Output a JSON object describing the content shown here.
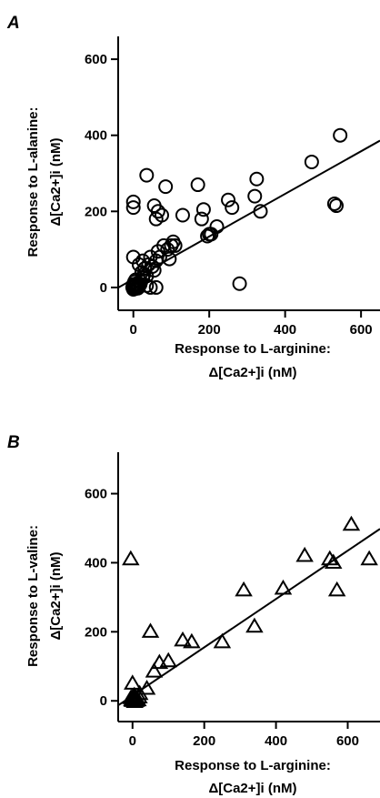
{
  "chart_data": [
    {
      "type": "scatter",
      "panel": "A",
      "xlabel": [
        "Response to L-arginine:",
        "Δ[Ca2+]i (nM)"
      ],
      "ylabel": [
        "Response to L-alanine:",
        "Δ[Ca2+]i (nM)"
      ],
      "xlim": [
        -40,
        650
      ],
      "ylim": [
        -60,
        660
      ],
      "xticks": [
        0,
        200,
        400,
        600
      ],
      "yticks": [
        0,
        200,
        400,
        600
      ],
      "marker": "circle",
      "grid": false,
      "points": [
        [
          0,
          0
        ],
        [
          2,
          5
        ],
        [
          5,
          -3
        ],
        [
          8,
          10
        ],
        [
          3,
          15
        ],
        [
          10,
          2
        ],
        [
          0,
          8
        ],
        [
          -2,
          0
        ],
        [
          12,
          -2
        ],
        [
          6,
          20
        ],
        [
          1,
          3
        ],
        [
          4,
          7
        ],
        [
          0,
          -5
        ],
        [
          14,
          4
        ],
        [
          18,
          8
        ],
        [
          20,
          15
        ],
        [
          25,
          25
        ],
        [
          28,
          35
        ],
        [
          30,
          50
        ],
        [
          22,
          40
        ],
        [
          35,
          30
        ],
        [
          40,
          60
        ],
        [
          45,
          80
        ],
        [
          50,
          55
        ],
        [
          55,
          45
        ],
        [
          60,
          70
        ],
        [
          65,
          95
        ],
        [
          35,
          5
        ],
        [
          45,
          0
        ],
        [
          60,
          0
        ],
        [
          70,
          80
        ],
        [
          80,
          110
        ],
        [
          90,
          100
        ],
        [
          100,
          110
        ],
        [
          105,
          120
        ],
        [
          95,
          75
        ],
        [
          110,
          110
        ],
        [
          15,
          60
        ],
        [
          25,
          70
        ],
        [
          0,
          80
        ],
        [
          0,
          210
        ],
        [
          0,
          225
        ],
        [
          35,
          295
        ],
        [
          55,
          215
        ],
        [
          60,
          180
        ],
        [
          65,
          200
        ],
        [
          75,
          190
        ],
        [
          85,
          265
        ],
        [
          130,
          190
        ],
        [
          170,
          270
        ],
        [
          180,
          180
        ],
        [
          185,
          205
        ],
        [
          195,
          135
        ],
        [
          200,
          140
        ],
        [
          205,
          140
        ],
        [
          220,
          160
        ],
        [
          250,
          230
        ],
        [
          260,
          210
        ],
        [
          280,
          10
        ],
        [
          320,
          240
        ],
        [
          325,
          285
        ],
        [
          335,
          200
        ],
        [
          470,
          330
        ],
        [
          530,
          220
        ],
        [
          535,
          215
        ],
        [
          545,
          400
        ]
      ],
      "regression": {
        "intercept": 22,
        "slope": 0.56
      }
    },
    {
      "type": "scatter",
      "panel": "B",
      "xlabel": [
        "Response to L-arginine:",
        "Δ[Ca2+]i (nM)"
      ],
      "ylabel": [
        "Response to L-valine:",
        "Δ[Ca2+]i (nM)"
      ],
      "xlim": [
        -40,
        690
      ],
      "ylim": [
        -60,
        720
      ],
      "xticks": [
        0,
        200,
        400,
        600
      ],
      "yticks": [
        0,
        200,
        400,
        600
      ],
      "marker": "triangle",
      "grid": false,
      "points": [
        [
          0,
          0
        ],
        [
          3,
          5
        ],
        [
          -2,
          2
        ],
        [
          6,
          -3
        ],
        [
          8,
          8
        ],
        [
          2,
          12
        ],
        [
          10,
          0
        ],
        [
          12,
          5
        ],
        [
          -4,
          8
        ],
        [
          5,
          15
        ],
        [
          15,
          2
        ],
        [
          18,
          10
        ],
        [
          20,
          20
        ],
        [
          0,
          50
        ],
        [
          -5,
          410
        ],
        [
          40,
          35
        ],
        [
          50,
          200
        ],
        [
          60,
          85
        ],
        [
          75,
          110
        ],
        [
          100,
          115
        ],
        [
          140,
          175
        ],
        [
          165,
          170
        ],
        [
          250,
          170
        ],
        [
          310,
          320
        ],
        [
          340,
          215
        ],
        [
          420,
          325
        ],
        [
          480,
          420
        ],
        [
          550,
          410
        ],
        [
          560,
          400
        ],
        [
          570,
          320
        ],
        [
          610,
          510
        ],
        [
          660,
          410
        ]
      ],
      "regression": {
        "intercept": 15,
        "slope": 0.7
      }
    }
  ]
}
